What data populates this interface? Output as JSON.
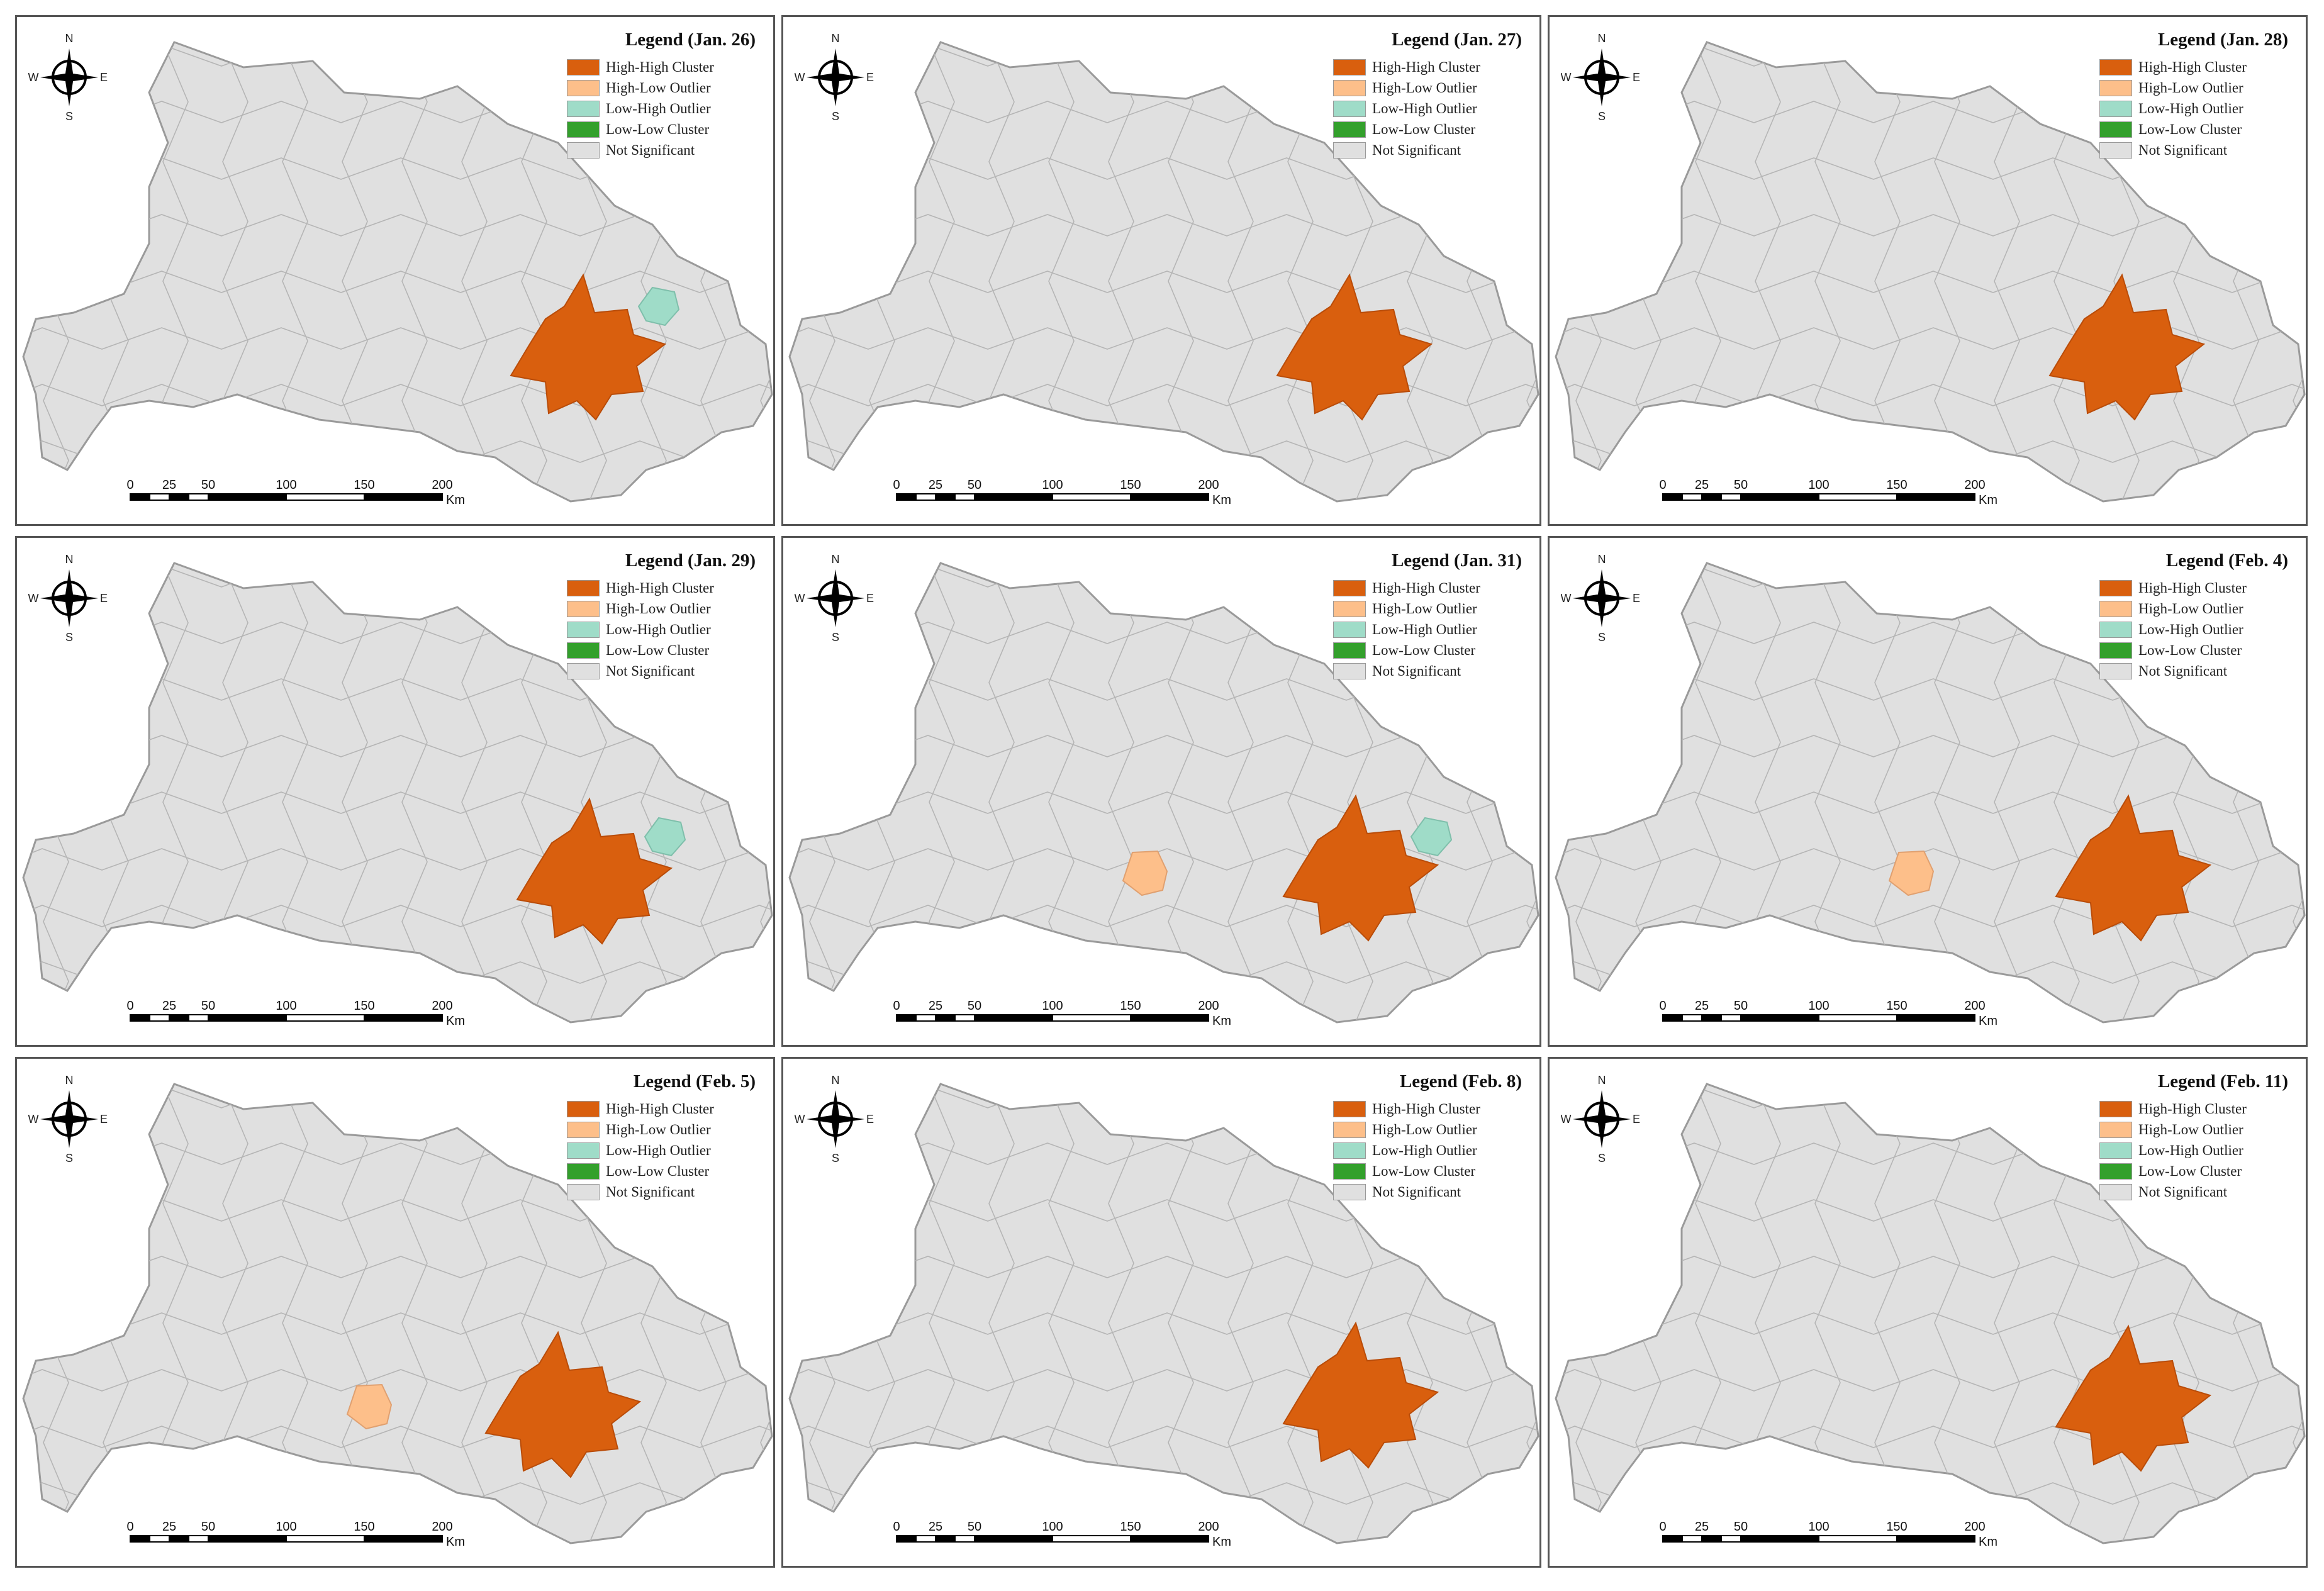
{
  "colors": {
    "high_high": "#d95f0e",
    "high_low": "#fdbf8a",
    "low_high": "#9fdcc8",
    "low_low": "#33a02c",
    "not_significant": "#e0e0e0",
    "boundary": "#b5b5b5"
  },
  "legend_items": [
    {
      "key": "high_high",
      "label": "High-High Cluster"
    },
    {
      "key": "high_low",
      "label": "High-Low Outlier"
    },
    {
      "key": "low_high",
      "label": "Low-High Outlier"
    },
    {
      "key": "low_low",
      "label": "Low-Low Cluster"
    },
    {
      "key": "not_significant",
      "label": "Not Significant"
    }
  ],
  "compass": {
    "n": "N",
    "s": "S",
    "e": "E",
    "w": "W"
  },
  "scale_bar": {
    "ticks": [
      "0",
      "25",
      "50",
      "100",
      "150",
      "200"
    ],
    "unit": "Km"
  },
  "panels": [
    {
      "legend_title": "Legend (Jan. 26)",
      "highlights": [
        "high_high",
        "low_high"
      ]
    },
    {
      "legend_title": "Legend (Jan. 27)",
      "highlights": [
        "high_high"
      ]
    },
    {
      "legend_title": "Legend (Jan. 28)",
      "highlights": [
        "high_high"
      ]
    },
    {
      "legend_title": "Legend (Jan. 29)",
      "highlights": [
        "high_high",
        "low_high"
      ]
    },
    {
      "legend_title": "Legend (Jan. 31)",
      "highlights": [
        "high_high",
        "low_high",
        "high_low"
      ]
    },
    {
      "legend_title": "Legend (Feb. 4)",
      "highlights": [
        "high_high",
        "high_low"
      ]
    },
    {
      "legend_title": "Legend (Feb. 5)",
      "highlights": [
        "high_high",
        "high_low"
      ]
    },
    {
      "legend_title": "Legend (Feb. 8)",
      "highlights": [
        "high_high"
      ]
    },
    {
      "legend_title": "Legend (Feb. 11)",
      "highlights": [
        "high_high"
      ]
    }
  ]
}
